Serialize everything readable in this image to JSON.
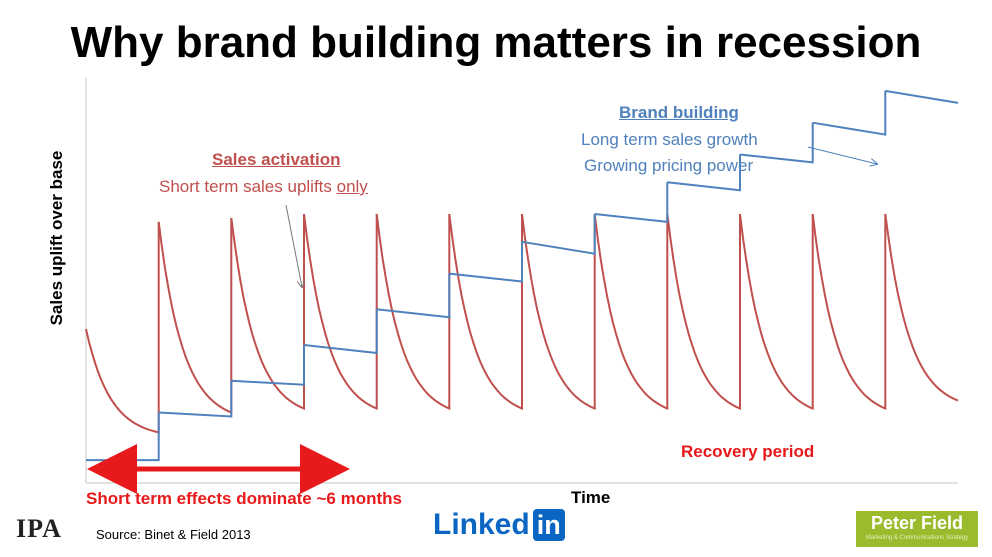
{
  "title": "Why brand building matters in recession",
  "chart_data": {
    "type": "line",
    "title": "Why brand building matters in recession",
    "xlabel": "Time",
    "ylabel": "Sales uplift over base",
    "grid": false,
    "ylim": [
      0,
      100
    ],
    "series": [
      {
        "name": "Sales activation",
        "color": "#c0504d",
        "cycles": [
          {
            "start": 0,
            "peak": 38,
            "end": 12
          },
          {
            "start": 1,
            "peak": 65,
            "end": 17
          },
          {
            "start": 2,
            "peak": 66,
            "end": 18
          },
          {
            "start": 3,
            "peak": 67,
            "end": 18
          },
          {
            "start": 4,
            "peak": 67,
            "end": 18
          },
          {
            "start": 5,
            "peak": 67,
            "end": 18
          },
          {
            "start": 6,
            "peak": 67,
            "end": 18
          },
          {
            "start": 7,
            "peak": 67,
            "end": 18
          },
          {
            "start": 8,
            "peak": 67,
            "end": 18
          },
          {
            "start": 9,
            "peak": 67,
            "end": 18
          },
          {
            "start": 10,
            "peak": 67,
            "end": 18
          },
          {
            "start": 11,
            "peak": 67,
            "end": 20
          }
        ]
      },
      {
        "name": "Brand building",
        "color": "#4f81bd",
        "steps": [
          {
            "x0": 0,
            "x1": 1,
            "from": 5,
            "to": 5
          },
          {
            "x0": 1,
            "x1": 2,
            "from": 17,
            "to": 16
          },
          {
            "x0": 2,
            "x1": 3,
            "from": 25,
            "to": 24
          },
          {
            "x0": 3,
            "x1": 4,
            "from": 34,
            "to": 32
          },
          {
            "x0": 4,
            "x1": 5,
            "from": 43,
            "to": 41
          },
          {
            "x0": 5,
            "x1": 6,
            "from": 52,
            "to": 50
          },
          {
            "x0": 6,
            "x1": 7,
            "from": 60,
            "to": 57
          },
          {
            "x0": 7,
            "x1": 8,
            "from": 67,
            "to": 65
          },
          {
            "x0": 8,
            "x1": 9,
            "from": 75,
            "to": 73
          },
          {
            "x0": 9,
            "x1": 10,
            "from": 82,
            "to": 80
          },
          {
            "x0": 10,
            "x1": 11,
            "from": 90,
            "to": 87
          },
          {
            "x0": 11,
            "x1": 12,
            "from": 98,
            "to": 95
          }
        ]
      }
    ]
  },
  "annotations": {
    "sales_activation": {
      "heading": "Sales activation",
      "line1": "Short term sales uplifts ",
      "line1_emph": "only"
    },
    "brand_building": {
      "heading": "Brand building",
      "line1": "Long term sales growth",
      "line2": "Growing pricing power"
    },
    "recovery": "Recovery period",
    "short_term": "Short term effects dominate ~6 months"
  },
  "footer": {
    "source": "Source: Binet & Field 2013",
    "ipa_logo": "IPA",
    "linkedin_text": "Linked",
    "linkedin_in": "in",
    "pf_main": "Peter Field",
    "pf_sub": "Marketing & Communications Strategy"
  }
}
